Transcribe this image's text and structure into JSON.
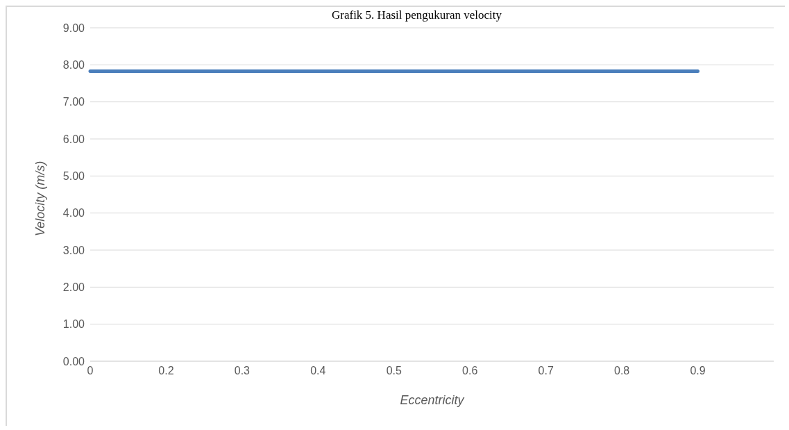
{
  "chart_data": {
    "type": "line",
    "title": "Grafik 5. Hasil pengukuran velocity",
    "xlabel": "Eccentricity",
    "ylabel": "Velocity (m/s)",
    "categories": [
      "0",
      "0.2",
      "0.3",
      "0.4",
      "0.5",
      "0.6",
      "0.7",
      "0.8",
      "0.9",
      null
    ],
    "series": [
      {
        "color": "#4a7ebb",
        "values": [
          7.83,
          7.83,
          7.83,
          7.83,
          7.83,
          7.83,
          7.83,
          7.83,
          7.83,
          null
        ]
      }
    ],
    "ylim": [
      0,
      9
    ],
    "yticks": [
      {
        "value": 0,
        "label": "0.00"
      },
      {
        "value": 1,
        "label": "1.00"
      },
      {
        "value": 2,
        "label": "2.00"
      },
      {
        "value": 3,
        "label": "3.00"
      },
      {
        "value": 4,
        "label": "4.00"
      },
      {
        "value": 5,
        "label": "5.00"
      },
      {
        "value": 6,
        "label": "6.00"
      },
      {
        "value": 7,
        "label": "7.00"
      },
      {
        "value": 8,
        "label": "8.00"
      },
      {
        "value": 9,
        "label": "9.00"
      }
    ],
    "grid": "y",
    "marker": "none",
    "line_style": "solid"
  }
}
